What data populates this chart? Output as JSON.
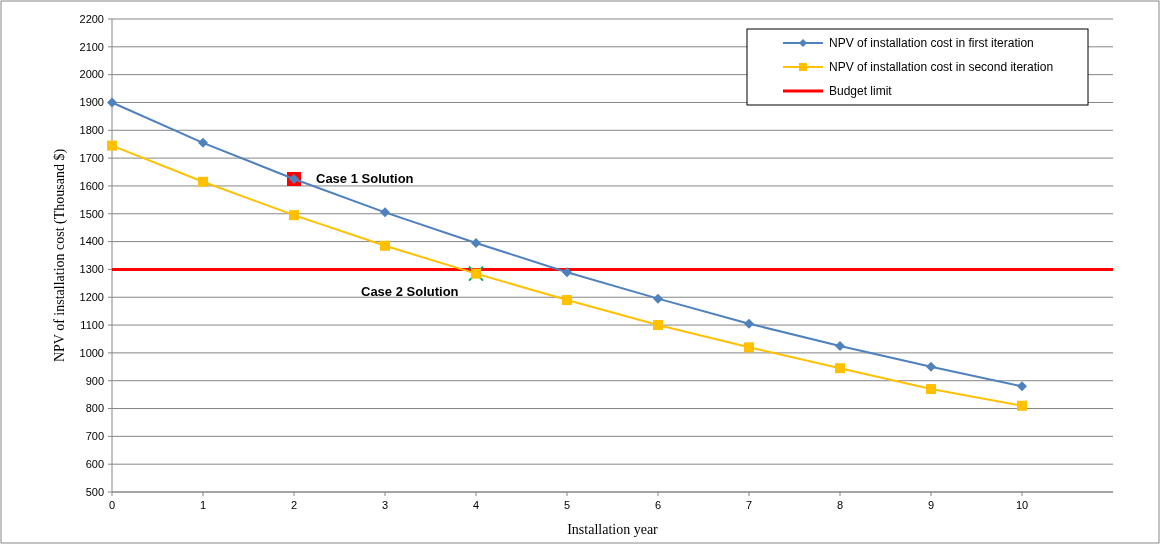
{
  "chart_data": {
    "type": "line",
    "xlabel": "Installation year",
    "ylabel": "NPV of installation cost (Thousand $)",
    "xlim": [
      0,
      11
    ],
    "xticks": [
      0,
      1,
      2,
      3,
      4,
      5,
      6,
      7,
      8,
      9,
      10
    ],
    "ylim": [
      500,
      2200
    ],
    "yticks": [
      500,
      600,
      700,
      800,
      900,
      1000,
      1100,
      1200,
      1300,
      1400,
      1500,
      1600,
      1700,
      1800,
      1900,
      2000,
      2100,
      2200
    ],
    "grid": "y",
    "legend": "top right",
    "x": [
      0,
      1,
      2,
      3,
      4,
      5,
      6,
      7,
      8,
      9,
      10
    ],
    "series": [
      {
        "name": "NPV of installation cost in first iteration",
        "color": "#4f81bd",
        "marker": "diamond",
        "values": [
          1900,
          1755,
          1625,
          1505,
          1395,
          1290,
          1195,
          1105,
          1025,
          950,
          880
        ]
      },
      {
        "name": "NPV of installation cost in second iteration",
        "color": "#ffc000",
        "marker": "square",
        "values": [
          1745,
          1615,
          1495,
          1385,
          1285,
          1190,
          1100,
          1020,
          945,
          870,
          810
        ]
      },
      {
        "type": "scatter",
        "color": "#ff0000",
        "marker": "square",
        "x": [
          2
        ],
        "values": [
          1625
        ]
      },
      {
        "type": "scatter",
        "color": "#00b050",
        "marker": "cross",
        "x": [
          4
        ],
        "values": [
          1285
        ]
      }
    ],
    "ref_lines": [
      {
        "axis": "y",
        "value": 1300,
        "label": "Budget limit",
        "color": "#ff0000"
      }
    ],
    "annotations": [
      {
        "text": "Case 1 Solution",
        "x": 2,
        "y": 1625
      },
      {
        "text": "Case 2 Solution",
        "x": 4,
        "y": 1285
      }
    ]
  }
}
